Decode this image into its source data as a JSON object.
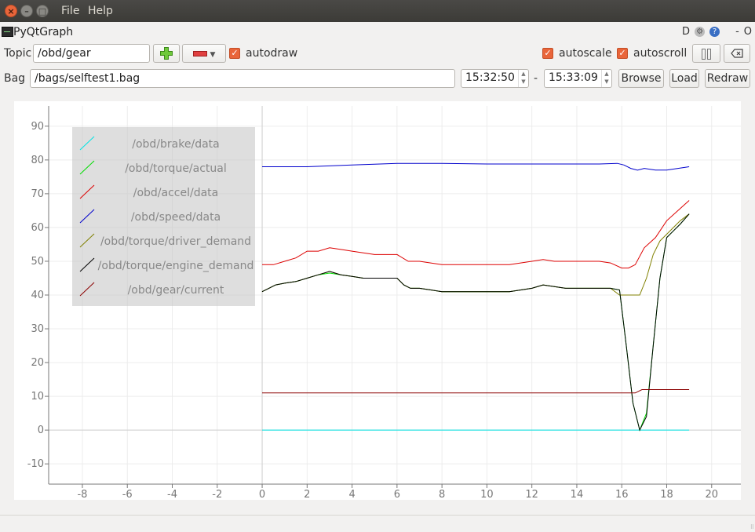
{
  "window": {
    "menu": [
      "File",
      "Help"
    ]
  },
  "pyqtgraph_bar": {
    "title": "PyQtGraph",
    "icons": [
      "D",
      "gear-icon",
      "help-icon",
      "-",
      "O"
    ]
  },
  "toolbar": {
    "topic_label": "Topic",
    "topic_value": "/obd/gear",
    "add_icon": "plus-icon",
    "remove_icon": "minus-icon",
    "autodraw_label": "autodraw",
    "autodraw_checked": true,
    "autoscale_label": "autoscale",
    "autoscale_checked": true,
    "autoscroll_label": "autoscroll",
    "autoscroll_checked": true,
    "pause_icon": "pause-icon",
    "clear_icon": "clear-icon"
  },
  "bagbar": {
    "bag_label": "Bag",
    "bag_value": "/bags/selftest1.bag",
    "start_time": "15:32:50",
    "separator": "-",
    "end_time": "15:33:09",
    "browse_label": "Browse",
    "load_label": "Load",
    "redraw_label": "Redraw"
  },
  "chart_data": {
    "type": "line",
    "title": "",
    "xlabel": "",
    "ylabel": "",
    "xlim": [
      -9.5,
      21.3
    ],
    "ylim": [
      -16,
      96
    ],
    "xticks": [
      -8,
      -6,
      -4,
      -2,
      0,
      2,
      4,
      6,
      8,
      10,
      12,
      14,
      16,
      18,
      20
    ],
    "yticks": [
      -10,
      0,
      10,
      20,
      30,
      40,
      50,
      60,
      70,
      80,
      90
    ],
    "grid": true,
    "legend_position": "top-left",
    "series": [
      {
        "name": "/obd/brake/data",
        "color": "#00e5e5",
        "x": [
          0,
          19
        ],
        "y": [
          0,
          0
        ]
      },
      {
        "name": "/obd/torque/actual",
        "color": "#00dd00",
        "x": [
          0,
          0.3,
          0.6,
          1.0,
          1.5,
          2.0,
          2.5,
          3.0,
          3.5,
          4.0,
          4.5,
          5.0,
          5.5,
          6.0,
          6.3,
          6.6,
          7.0,
          7.5,
          8.0,
          9.0,
          10.0,
          11.0,
          12.0,
          12.5,
          13.0,
          13.5,
          14.0,
          14.5,
          15.0,
          15.5,
          15.9,
          16.2,
          16.5,
          16.8,
          17.1,
          17.4,
          17.7,
          18.0,
          18.3,
          18.6,
          19.0
        ],
        "y": [
          41,
          42,
          43,
          43.5,
          44,
          45,
          46,
          46.5,
          46,
          45.5,
          45,
          45,
          45,
          45,
          43,
          42,
          42,
          41.5,
          41,
          41,
          41,
          41,
          42,
          43,
          42.5,
          42,
          42,
          42,
          42,
          42,
          41.5,
          25,
          8,
          0,
          5,
          25,
          45,
          57,
          59,
          61,
          64
        ]
      },
      {
        "name": "/obd/accel/data",
        "color": "#dd0000",
        "x": [
          0,
          0.5,
          1.0,
          1.5,
          2.0,
          2.5,
          3.0,
          3.5,
          4.0,
          4.5,
          5.0,
          5.5,
          6.0,
          6.5,
          7.0,
          7.5,
          8.0,
          9.0,
          10.0,
          11.0,
          12.0,
          12.5,
          13.0,
          14.0,
          15.0,
          15.5,
          16.0,
          16.3,
          16.6,
          17.0,
          17.5,
          18.0,
          18.5,
          19.0
        ],
        "y": [
          49,
          49,
          50,
          51,
          53,
          53,
          54,
          53.5,
          53,
          52.5,
          52,
          52,
          52,
          50,
          50,
          49.5,
          49,
          49,
          49,
          49,
          50,
          50.5,
          50,
          50,
          50,
          49.5,
          48,
          48,
          49,
          54,
          57,
          62,
          65,
          68
        ]
      },
      {
        "name": "/obd/speed/data",
        "color": "#0000cc",
        "x": [
          0,
          2,
          4,
          6,
          8,
          10,
          12,
          14,
          15,
          15.8,
          16.1,
          16.4,
          16.7,
          17.0,
          17.5,
          18.0,
          18.5,
          19.0
        ],
        "y": [
          78,
          78,
          78.5,
          79,
          79,
          78.8,
          78.8,
          78.8,
          78.8,
          79,
          78.5,
          77.5,
          77,
          77.5,
          77,
          77,
          77.5,
          78
        ]
      },
      {
        "name": "/obd/torque/driver_demand",
        "color": "#808000",
        "x": [
          0,
          0.3,
          0.6,
          1.0,
          1.5,
          2.0,
          2.5,
          3.0,
          3.5,
          4.0,
          4.5,
          5.0,
          5.5,
          6.0,
          6.3,
          6.6,
          7.0,
          7.5,
          8.0,
          9.0,
          10.0,
          11.0,
          12.0,
          12.5,
          13.0,
          13.5,
          14.0,
          14.5,
          15.0,
          15.5,
          15.9,
          16.2,
          16.5,
          16.8,
          17.1,
          17.4,
          17.7,
          18.0,
          18.3,
          18.6,
          19.0
        ],
        "y": [
          41,
          42,
          43,
          43.5,
          44,
          45,
          46,
          47,
          46,
          45.5,
          45,
          45,
          45,
          45,
          43,
          42,
          42,
          41.5,
          41,
          41,
          41,
          41,
          42,
          43,
          42.5,
          42,
          42,
          42,
          42,
          42,
          40,
          40,
          40,
          40,
          45,
          52,
          56,
          58,
          60,
          62,
          64
        ]
      },
      {
        "name": "/obd/torque/engine_demand",
        "color": "#000000",
        "x": [
          0,
          0.3,
          0.6,
          1.0,
          1.5,
          2.0,
          2.5,
          3.0,
          3.5,
          4.0,
          4.5,
          5.0,
          5.5,
          6.0,
          6.3,
          6.6,
          7.0,
          7.5,
          8.0,
          9.0,
          10.0,
          11.0,
          12.0,
          12.5,
          13.0,
          13.5,
          14.0,
          14.5,
          15.0,
          15.5,
          15.9,
          16.2,
          16.5,
          16.8,
          17.1,
          17.4,
          17.7,
          18.0,
          18.3,
          18.6,
          19.0
        ],
        "y": [
          41,
          42,
          43,
          43.5,
          44,
          45,
          46,
          47,
          46,
          45.5,
          45,
          45,
          45,
          45,
          43,
          42,
          42,
          41.5,
          41,
          41,
          41,
          41,
          42,
          43,
          42.5,
          42,
          42,
          42,
          42,
          42,
          41.5,
          25,
          8,
          0,
          4,
          25,
          45,
          57,
          59,
          61,
          64
        ]
      },
      {
        "name": "/obd/gear/current",
        "color": "#8b0000",
        "x": [
          0,
          16.6,
          16.9,
          19
        ],
        "y": [
          11,
          11,
          12,
          12
        ]
      }
    ]
  }
}
